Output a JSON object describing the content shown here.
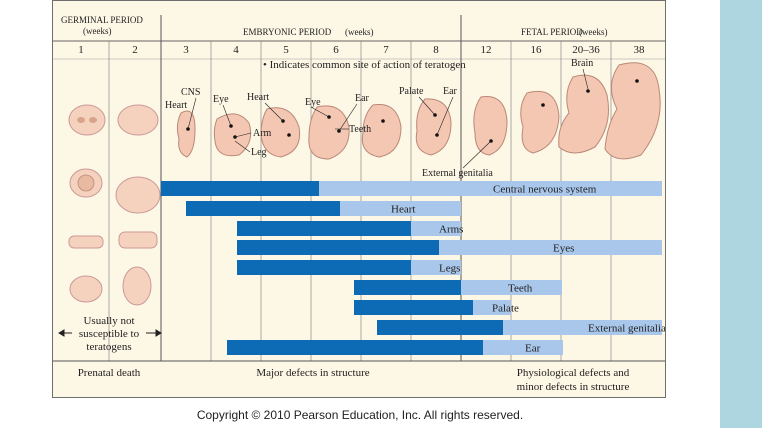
{
  "periods": {
    "germinal": "GERMINAL PERIOD",
    "germinal_unit": "(weeks)",
    "embryonic": "EMBRYONIC PERIOD",
    "embryonic_unit": "(weeks)",
    "fetal": "FETAL PERIOD",
    "fetal_unit": "(weeks)"
  },
  "weeks": [
    "1",
    "2",
    "3",
    "4",
    "5",
    "6",
    "7",
    "8",
    "12",
    "16",
    "20–36",
    "38"
  ],
  "indicator_note": "• Indicates common site of action of teratogen",
  "organ_labels": [
    "CNS",
    "Heart",
    "Eye",
    "Heart",
    "Arm",
    "Leg",
    "Eye",
    "Ear",
    "Teeth",
    "Palate",
    "Ear",
    "External genitalia",
    "Brain"
  ],
  "not_susceptible": [
    "Usually not",
    "susceptible to",
    "teratogens"
  ],
  "footer": {
    "germinal": "Prenatal death",
    "embryonic": "Major defects in structure",
    "fetal_line1": "Physiological defects and",
    "fetal_line2": "minor defects in structure"
  },
  "bar_colors": {
    "major": "#0d6ab4",
    "minor": "#a9c7eb",
    "bar_text": "#1a1a1a"
  },
  "chart_data": {
    "type": "gantt",
    "units": "weeks",
    "columns": [
      "1",
      "2",
      "3",
      "4",
      "5",
      "6",
      "7",
      "8",
      "12",
      "16",
      "20–36",
      "38"
    ],
    "series": [
      {
        "name": "Central nervous system",
        "major": [
          "3",
          "5"
        ],
        "minor": [
          "6",
          "38"
        ]
      },
      {
        "name": "Heart",
        "major": [
          "3",
          "6"
        ],
        "minor": [
          "6",
          "8"
        ]
      },
      {
        "name": "Arms",
        "major": [
          "4",
          "7"
        ],
        "minor": [
          "7",
          "8"
        ]
      },
      {
        "name": "Eyes",
        "major": [
          "4",
          "8"
        ],
        "minor": [
          "8",
          "38"
        ]
      },
      {
        "name": "Legs",
        "major": [
          "4",
          "7"
        ],
        "minor": [
          "7",
          "8"
        ]
      },
      {
        "name": "Teeth",
        "major": [
          "6",
          "8"
        ],
        "minor": [
          "8",
          "16"
        ]
      },
      {
        "name": "Palate",
        "major": [
          "6",
          "12"
        ],
        "minor": [
          "12",
          "16"
        ]
      },
      {
        "name": "External genitalia",
        "major": [
          "7",
          "16"
        ],
        "minor": [
          "16",
          "38"
        ]
      },
      {
        "name": "Ear",
        "major": [
          "4",
          "12"
        ],
        "minor": [
          "12",
          "16"
        ]
      }
    ]
  },
  "copyright": "Copyright © 2010 Pearson Education, Inc. All rights reserved."
}
